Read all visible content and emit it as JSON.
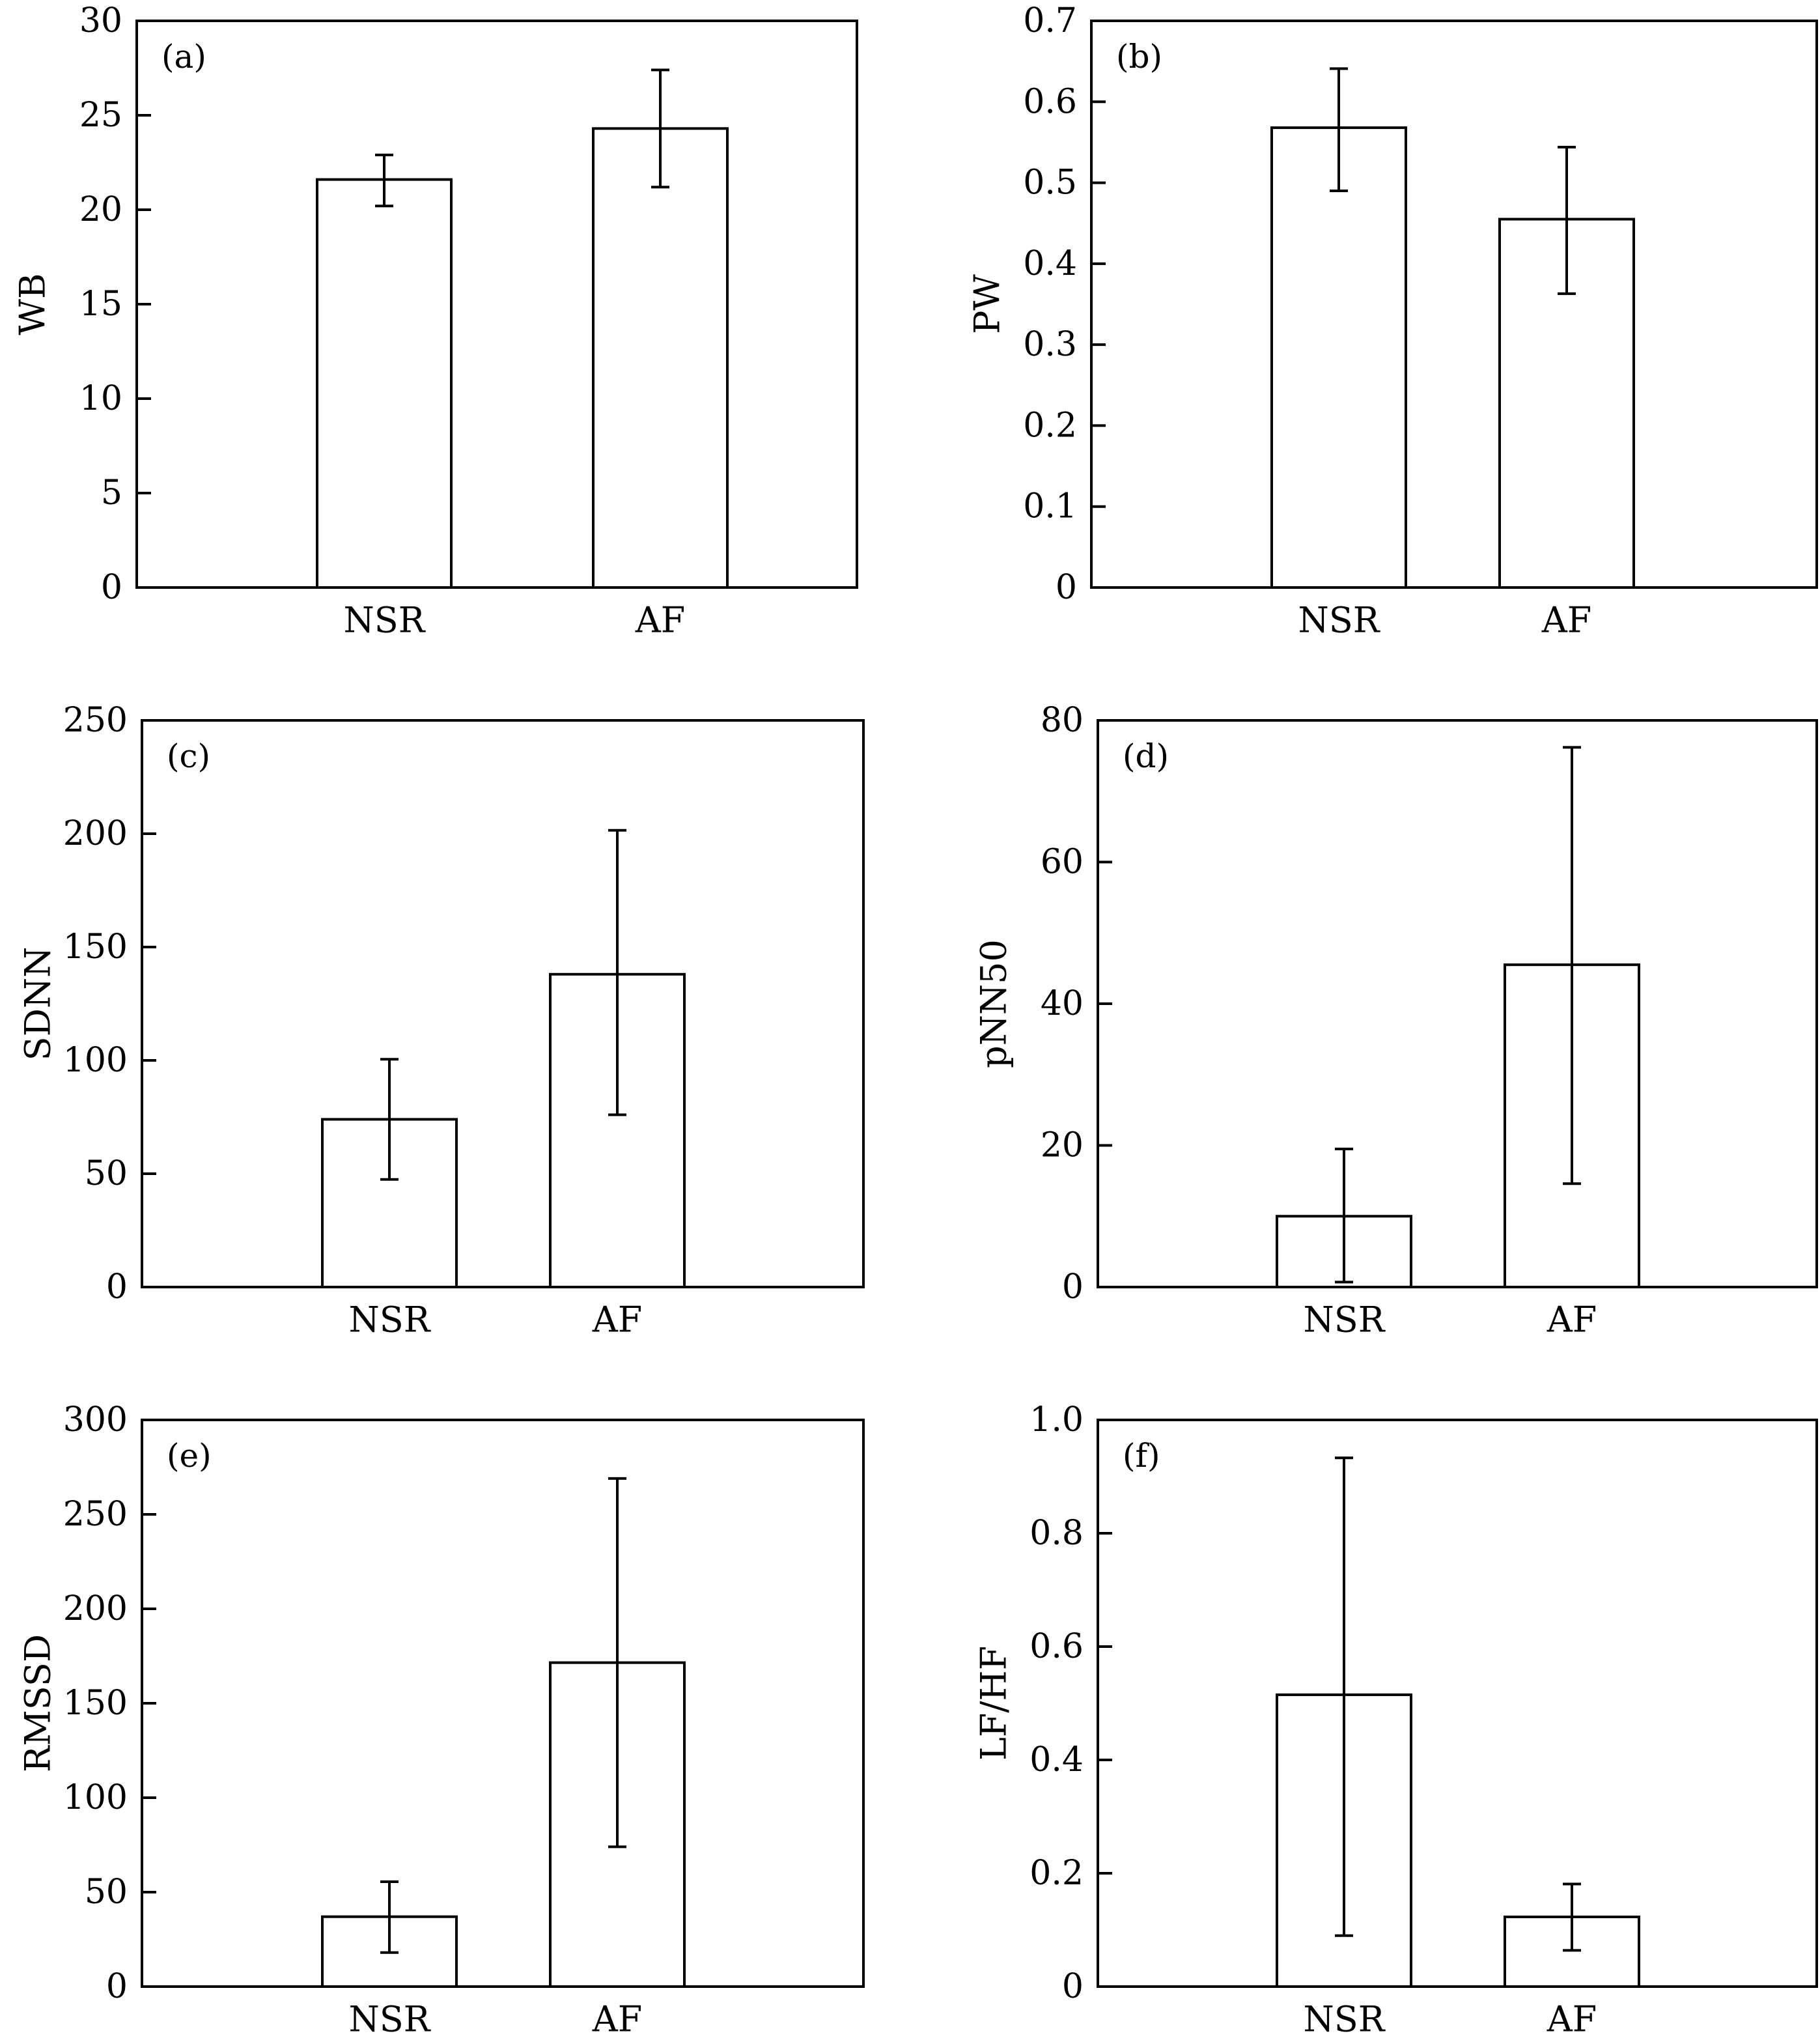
{
  "chart_data": [
    {
      "type": "bar",
      "panel_label": "(a)",
      "ylabel": "WB",
      "categories": [
        "NSR",
        "AF"
      ],
      "values": [
        21.6,
        24.3
      ],
      "errors": [
        {
          "low": 20.2,
          "high": 22.9
        },
        {
          "low": 21.2,
          "high": 27.4
        }
      ],
      "ylim": [
        0,
        30
      ],
      "yticks": [
        0,
        5,
        10,
        15,
        20,
        25,
        30
      ],
      "ytick_labels": [
        "0",
        "5",
        "10",
        "15",
        "20",
        "25",
        "30"
      ]
    },
    {
      "type": "bar",
      "panel_label": "(b)",
      "ylabel": "PW",
      "categories": [
        "NSR",
        "AF"
      ],
      "values": [
        0.568,
        0.455
      ],
      "errors": [
        {
          "low": 0.49,
          "high": 0.641
        },
        {
          "low": 0.363,
          "high": 0.544
        }
      ],
      "ylim": [
        0,
        0.7
      ],
      "yticks": [
        0,
        0.1,
        0.2,
        0.3,
        0.4,
        0.5,
        0.6,
        0.7
      ],
      "ytick_labels": [
        "0",
        "0.1",
        "0.2",
        "0.3",
        "0.4",
        "0.5",
        "0.6",
        "0.7"
      ]
    },
    {
      "type": "bar",
      "panel_label": "(c)",
      "ylabel": "SDNN",
      "categories": [
        "NSR",
        "AF"
      ],
      "values": [
        74,
        138
      ],
      "errors": [
        {
          "low": 47.5,
          "high": 100.5
        },
        {
          "low": 76,
          "high": 201.5
        }
      ],
      "ylim": [
        0,
        250
      ],
      "yticks": [
        0,
        50,
        100,
        150,
        200,
        250
      ],
      "ytick_labels": [
        "0",
        "50",
        "100",
        "150",
        "200",
        "250"
      ]
    },
    {
      "type": "bar",
      "panel_label": "(d)",
      "ylabel": "pNN50",
      "categories": [
        "NSR",
        "AF"
      ],
      "values": [
        10,
        45.5
      ],
      "errors": [
        {
          "low": 0.7,
          "high": 19.5
        },
        {
          "low": 14.6,
          "high": 76.2
        }
      ],
      "ylim": [
        0,
        80
      ],
      "yticks": [
        0,
        20,
        40,
        60,
        80
      ],
      "ytick_labels": [
        "0",
        "20",
        "40",
        "60",
        "80"
      ]
    },
    {
      "type": "bar",
      "panel_label": "(e)",
      "ylabel": "RMSSD",
      "categories": [
        "NSR",
        "AF"
      ],
      "values": [
        37,
        171.5
      ],
      "errors": [
        {
          "low": 18,
          "high": 55.5
        },
        {
          "low": 74,
          "high": 269
        }
      ],
      "ylim": [
        0,
        300
      ],
      "yticks": [
        0,
        50,
        100,
        150,
        200,
        250,
        300
      ],
      "ytick_labels": [
        "0",
        "50",
        "100",
        "150",
        "200",
        "250",
        "300"
      ]
    },
    {
      "type": "bar",
      "panel_label": "(f)",
      "ylabel": "LF/HF",
      "categories": [
        "NSR",
        "AF"
      ],
      "values": [
        0.515,
        0.123
      ],
      "errors": [
        {
          "low": 0.09,
          "high": 0.933
        },
        {
          "low": 0.064,
          "high": 0.181
        }
      ],
      "ylim": [
        0,
        1.0
      ],
      "yticks": [
        0,
        0.2,
        0.4,
        0.6,
        0.8,
        1.0
      ],
      "ytick_labels": [
        "0",
        "0.2",
        "0.4",
        "0.6",
        "0.8",
        "1.0"
      ]
    }
  ]
}
